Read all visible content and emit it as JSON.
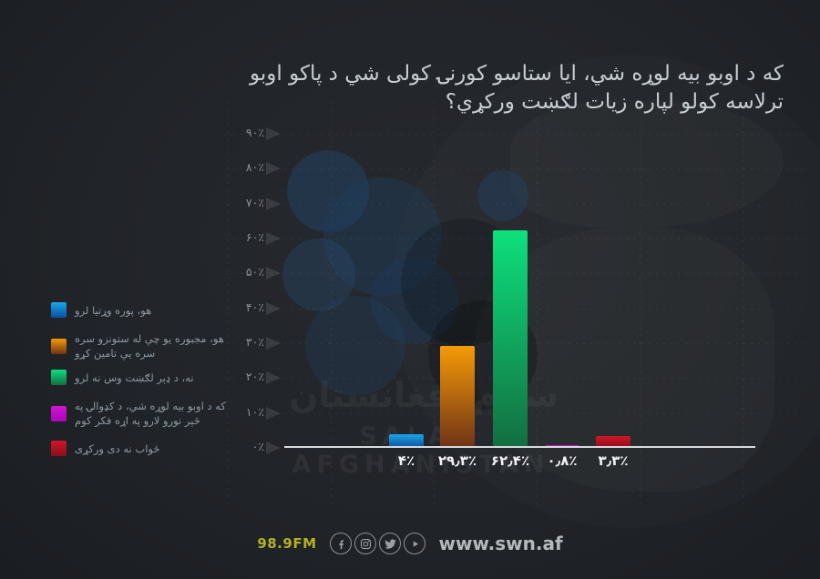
{
  "title": {
    "line1": "که د اوبو بیه لوړه شي، ایا ستاسو کورنۍ کولی شي د پاکو اوبو",
    "line2": "ترلاسه کولو لپاره زیات لګښت ورکړي؟"
  },
  "chart_data": {
    "type": "bar",
    "title": "که د اوبو بیه لوړه شي، ایا ستاسو کورنۍ کولی شي د پاکو اوبو ترلاسه کولو لپاره زیات لګښت ورکړي؟",
    "categories": [
      "هو، پوره وړتیا لرو",
      "هو، مجبوره یو چې له ستونزو سره سره یې تامین کړو",
      "نه، د ډېر لګښت وس نه لرو",
      "که د اوبو بیه لوړه شي، د کډوالۍ په څېر نورو لارو په اړه فکر کوم",
      "ځواب نه دی ورکړی"
    ],
    "values": [
      4,
      29.3,
      62.4,
      0.8,
      3.3
    ],
    "value_labels": [
      "۴٪",
      "۲۹٫۳٪",
      "۶۲٫۴٪",
      "۰٫۸٪",
      "۳٫۳٪"
    ],
    "bar_colors_top": [
      "#1aa6e8",
      "#f59b06",
      "#0de07d",
      "#d214d2",
      "#d01627"
    ],
    "bar_colors_bottom": [
      "#0d4f9e",
      "#6e3317",
      "#136e40",
      "#a708b5",
      "#8c0e1b"
    ],
    "ylim": [
      0,
      90
    ],
    "y_ticks": [
      {
        "value": 90,
        "label": "۹۰٪"
      },
      {
        "value": 80,
        "label": "۸۰٪"
      },
      {
        "value": 70,
        "label": "۷۰٪"
      },
      {
        "value": 60,
        "label": "۶۰٪"
      },
      {
        "value": 50,
        "label": "۵۰٪"
      },
      {
        "value": 40,
        "label": "۴۰٪"
      },
      {
        "value": 30,
        "label": "۳۰٪"
      },
      {
        "value": 20,
        "label": "۲۰٪"
      },
      {
        "value": 10,
        "label": "۱۰٪"
      },
      {
        "value": 0,
        "label": "۰٪"
      }
    ],
    "grid": "dotted",
    "legend_position": "left"
  },
  "watermark": {
    "line1": "سلام افغانستان",
    "line2": "SALAM AFGHANISTAN"
  },
  "footer": {
    "station": "98.9FM",
    "website": "www.swn.af",
    "social_icons": [
      "facebook-icon",
      "instagram-icon",
      "twitter-icon",
      "play-icon"
    ]
  },
  "colors": {
    "background": "#212428",
    "title_text": "#c7ced3",
    "tick_text": "#8a9096",
    "legend_text": "#8d9aa4",
    "value_text": "#f2f3f4",
    "axis_line": "#d8dadc",
    "accent_yellow": "#b2b125"
  }
}
